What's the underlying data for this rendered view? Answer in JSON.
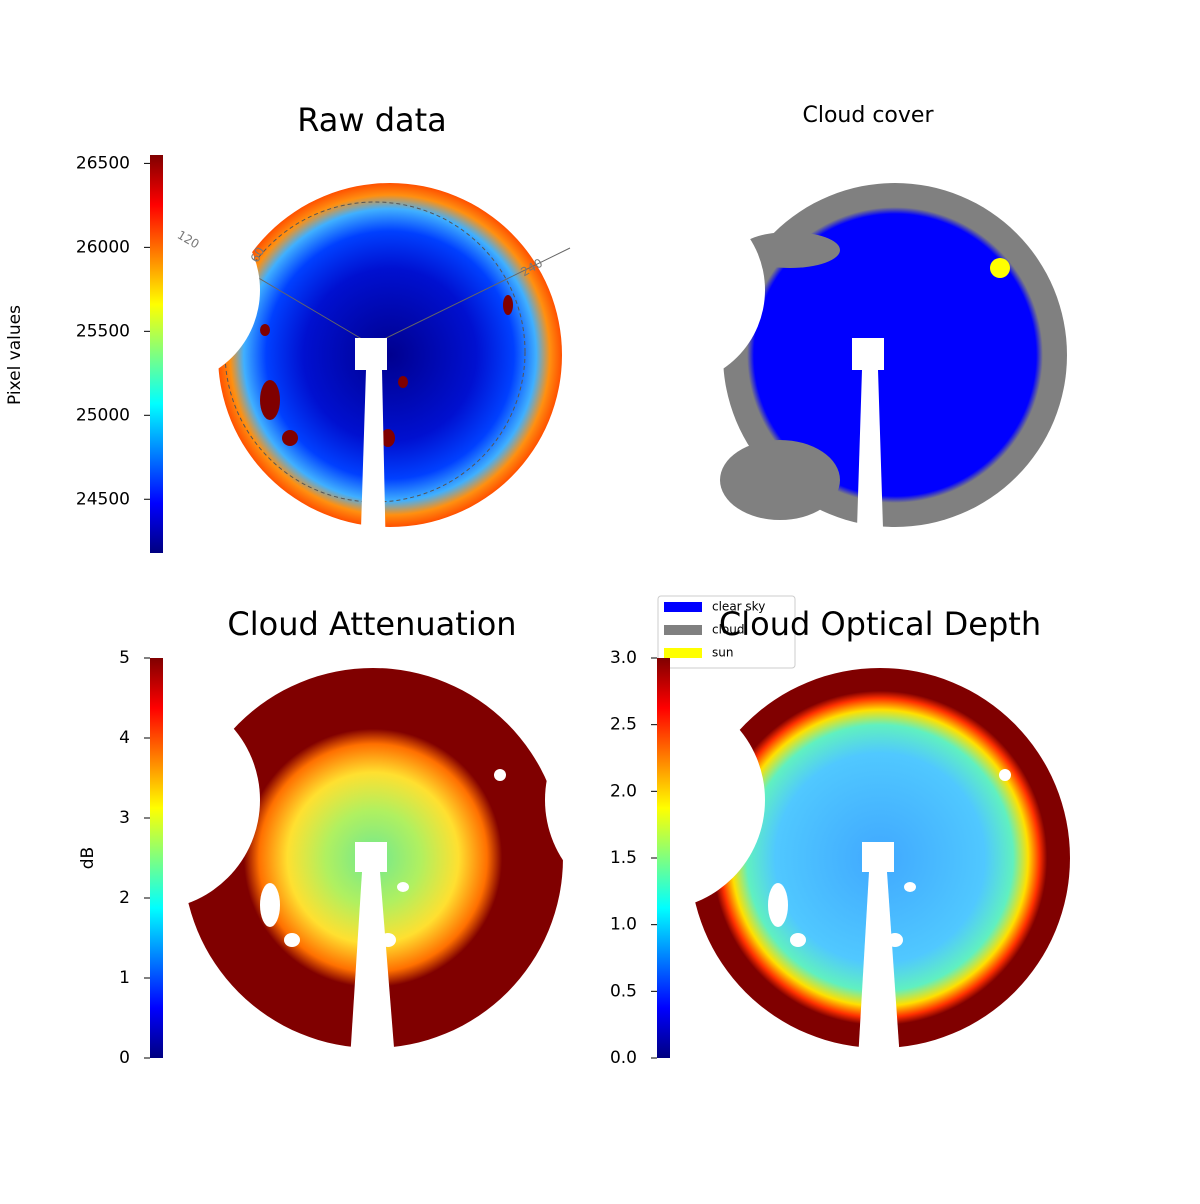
{
  "chart_data": [
    {
      "type": "image",
      "title": "Raw data",
      "colorbar": {
        "label": "Pixel values",
        "colormap": "jet",
        "clim": [
          24180,
          26550
        ],
        "ticks": [
          24500,
          25000,
          25500,
          26000,
          26500
        ]
      },
      "annotations": [
        "120",
        "60",
        "240"
      ]
    },
    {
      "type": "categorical-image",
      "title": "Cloud cover",
      "legend": [
        {
          "name": "clear sky",
          "color": "#0000ff"
        },
        {
          "name": "cloud",
          "color": "#808080"
        },
        {
          "name": "sun",
          "color": "#ffff00"
        }
      ]
    },
    {
      "type": "image",
      "title": "Cloud Attenuation",
      "colorbar": {
        "label": "dB",
        "colormap": "jet",
        "clim": [
          0,
          5
        ],
        "ticks": [
          0,
          1,
          2,
          3,
          4,
          5
        ]
      }
    },
    {
      "type": "image",
      "title": "Cloud Optical Depth",
      "colorbar": {
        "colormap": "jet",
        "clim": [
          0,
          3
        ],
        "ticks": [
          {
            "value": 0,
            "label": "0.0"
          },
          {
            "value": 0.5,
            "label": "0.5"
          },
          {
            "value": 1,
            "label": "1.0"
          },
          {
            "value": 1.5,
            "label": "1.5"
          },
          {
            "value": 2,
            "label": "2.0"
          },
          {
            "value": 2.5,
            "label": "2.5"
          },
          {
            "value": 3,
            "label": "3.0"
          }
        ]
      }
    }
  ]
}
